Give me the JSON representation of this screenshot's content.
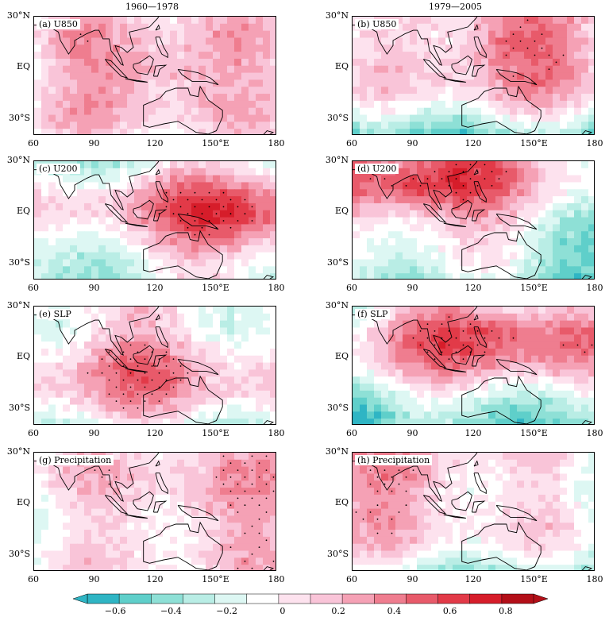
{
  "chart_data": {
    "type": "heatmap",
    "column_titles": [
      "1960—1978",
      "1979—2005"
    ],
    "panels": [
      {
        "label": "(a)  U850",
        "period": "1960—1978",
        "field": "U850",
        "dominant": 0.45
      },
      {
        "label": "(b)  U850",
        "period": "1979—2005",
        "field": "U850",
        "dominant": 0.5
      },
      {
        "label": "(c)  U200",
        "period": "1960—1978",
        "field": "U200",
        "dominant": 0.55
      },
      {
        "label": "(d)  U200",
        "period": "1979—2005",
        "field": "U200",
        "dominant": 0.6
      },
      {
        "label": "(e)  SLP",
        "period": "1960—1978",
        "field": "SLP",
        "dominant": 0.35
      },
      {
        "label": "(f)  SLP",
        "period": "1979—2005",
        "field": "SLP",
        "dominant": 0.55
      },
      {
        "label": "(g)  Precipitation",
        "period": "1960—1978",
        "field": "Precipitation",
        "dominant": 0.3
      },
      {
        "label": "(h)  Precipitation",
        "period": "1979—2005",
        "field": "Precipitation",
        "dominant": 0.35
      }
    ],
    "x_ticks": [
      "60",
      "90",
      "120",
      "150°E",
      "180"
    ],
    "y_ticks": [
      "30°N",
      "EQ",
      "30°S"
    ],
    "xlim": [
      60,
      180
    ],
    "ylim": [
      -40,
      30
    ],
    "colorbar": {
      "min": -0.7,
      "max": 0.9,
      "levels": [
        -0.7,
        -0.6,
        -0.5,
        -0.4,
        -0.3,
        -0.2,
        -0.1,
        0,
        0.1,
        0.2,
        0.3,
        0.4,
        0.5,
        0.6,
        0.7,
        0.8,
        0.9
      ],
      "tick_labels": [
        "−0.6",
        "−0.4",
        "−0.2",
        "0",
        "0.2",
        "0.4",
        "0.6",
        "0.8"
      ],
      "tick_values": [
        -0.6,
        -0.4,
        -0.2,
        0,
        0.2,
        0.4,
        0.6,
        0.8
      ],
      "colors": [
        "#2fb5c4",
        "#5fcfca",
        "#8ee0d6",
        "#b9ede5",
        "#ddf7f3",
        "#ffffff",
        "#fde2ee",
        "#f9c4d8",
        "#f5a1b5",
        "#ef7d8f",
        "#e85a6a",
        "#e23a48",
        "#d61d2a",
        "#b30f18"
      ]
    }
  },
  "colors": {
    "stipple": "#000000",
    "coast": "#000000"
  }
}
